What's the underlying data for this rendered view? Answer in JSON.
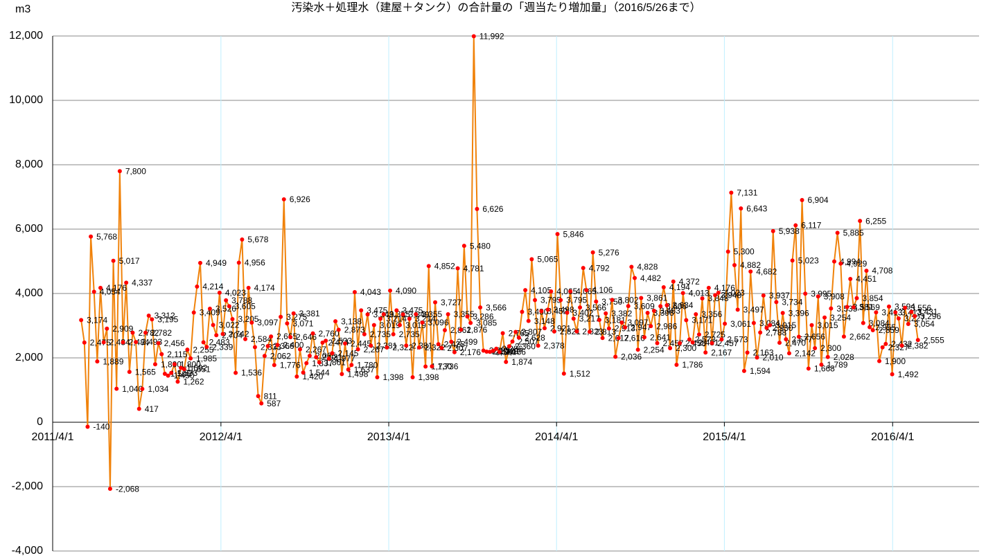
{
  "chart_data": {
    "type": "line",
    "title": "汚染水＋処理水（建屋＋タンク）の合計量の「週当たり増加量」（2016/5/26まで）",
    "y_label": "m3",
    "xlim": [
      "2011/4/1",
      "2016/10/6"
    ],
    "xticks": [
      "2011/4/1",
      "2012/4/1",
      "2013/4/1",
      "2014/4/1",
      "2015/4/1",
      "2016/4/1"
    ],
    "ylim": [
      -4000,
      12000
    ],
    "yticks": [
      {
        "value": -4000,
        "label": "-4,000"
      },
      {
        "value": -2000,
        "label": "-2,000"
      },
      0,
      {
        "value": 2000,
        "label": "2,000"
      },
      {
        "value": 4000,
        "label": "4,000"
      },
      {
        "value": 6000,
        "label": "6,000"
      },
      {
        "value": 8000,
        "label": "8,000"
      },
      {
        "value": 10000,
        "label": "10,000"
      },
      {
        "value": 12000,
        "label": "12,000"
      }
    ],
    "grid": true,
    "line_color": "#f0820a",
    "marker_color": "#ff0000",
    "negative_label_color": "#ff0000",
    "vgrid_color": "#bfefff",
    "x": [
      "2011/6/2",
      "2011/6/9",
      "2011/6/16",
      "2011/6/23",
      "2011/6/30",
      "2011/7/7",
      "2011/7/14",
      "2011/7/21",
      "2011/7/28",
      "2011/8/4",
      "2011/8/11",
      "2011/8/18",
      "2011/8/25",
      "2011/9/1",
      "2011/9/8",
      "2011/9/15",
      "2011/9/22",
      "2011/9/29",
      "2011/10/6",
      "2011/10/13",
      "2011/10/20",
      "2011/10/27",
      "2011/11/3",
      "2011/11/10",
      "2011/11/17",
      "2011/11/24",
      "2011/12/1",
      "2011/12/8",
      "2011/12/15",
      "2011/12/22",
      "2011/12/29",
      "2012/1/5",
      "2012/1/12",
      "2012/1/19",
      "2012/1/26",
      "2012/2/2",
      "2012/2/9",
      "2012/2/16",
      "2012/2/23",
      "2012/3/1",
      "2012/3/8",
      "2012/3/15",
      "2012/3/22",
      "2012/3/29",
      "2012/4/5",
      "2012/4/12",
      "2012/4/19",
      "2012/4/26",
      "2012/5/3",
      "2012/5/10",
      "2012/5/17",
      "2012/5/24",
      "2012/5/31",
      "2012/6/7",
      "2012/6/14",
      "2012/6/21",
      "2012/6/28",
      "2012/7/5",
      "2012/7/12",
      "2012/7/19",
      "2012/7/26",
      "2012/8/2",
      "2012/8/9",
      "2012/8/16",
      "2012/8/23",
      "2012/8/30",
      "2012/9/6",
      "2012/9/13",
      "2012/9/20",
      "2012/9/27",
      "2012/10/4",
      "2012/10/11",
      "2012/10/18",
      "2012/10/25",
      "2012/11/1",
      "2012/11/8",
      "2012/11/15",
      "2012/11/22",
      "2012/11/29",
      "2012/12/6",
      "2012/12/13",
      "2012/12/20",
      "2012/12/27",
      "2013/1/3",
      "2013/1/10",
      "2013/1/17",
      "2013/1/24",
      "2013/1/31",
      "2013/2/7",
      "2013/2/14",
      "2013/2/21",
      "2013/2/28",
      "2013/3/7",
      "2013/3/14",
      "2013/3/21",
      "2013/3/28",
      "2013/4/4",
      "2013/4/11",
      "2013/4/18",
      "2013/4/25",
      "2013/5/2",
      "2013/5/9",
      "2013/5/16",
      "2013/5/23",
      "2013/5/30",
      "2013/6/6",
      "2013/6/13",
      "2013/6/20",
      "2013/6/27",
      "2013/7/4",
      "2013/7/11",
      "2013/7/18",
      "2013/7/25",
      "2013/8/1",
      "2013/8/8",
      "2013/8/15",
      "2013/8/22",
      "2013/8/29",
      "2013/9/5",
      "2013/9/12",
      "2013/9/19",
      "2013/9/26",
      "2013/10/3",
      "2013/10/10",
      "2013/10/17",
      "2013/10/24",
      "2013/10/31",
      "2013/11/7",
      "2013/11/14",
      "2013/11/21",
      "2013/11/28",
      "2013/12/5",
      "2013/12/12",
      "2013/12/19",
      "2013/12/26",
      "2014/1/2",
      "2014/1/9",
      "2014/1/16",
      "2014/1/23",
      "2014/1/30",
      "2014/2/6",
      "2014/2/13",
      "2014/2/20",
      "2014/2/27",
      "2014/3/6",
      "2014/3/13",
      "2014/3/20",
      "2014/3/27",
      "2014/4/3",
      "2014/4/10",
      "2014/4/17",
      "2014/4/24",
      "2014/5/1",
      "2014/5/8",
      "2014/5/15",
      "2014/5/22",
      "2014/5/29",
      "2014/6/5",
      "2014/6/12",
      "2014/6/19",
      "2014/6/26",
      "2014/7/3",
      "2014/7/10",
      "2014/7/17",
      "2014/7/24",
      "2014/7/31",
      "2014/8/7",
      "2014/8/14",
      "2014/8/21",
      "2014/8/28",
      "2014/9/4",
      "2014/9/11",
      "2014/9/18",
      "2014/9/25",
      "2014/10/2",
      "2014/10/9",
      "2014/10/16",
      "2014/10/23",
      "2014/10/30",
      "2014/11/6",
      "2014/11/13",
      "2014/11/20",
      "2014/11/27",
      "2014/12/4",
      "2014/12/11",
      "2014/12/18",
      "2014/12/25",
      "2015/1/1",
      "2015/1/8",
      "2015/1/15",
      "2015/1/22",
      "2015/1/29",
      "2015/2/5",
      "2015/2/12",
      "2015/2/19",
      "2015/2/26",
      "2015/3/5",
      "2015/3/12",
      "2015/3/19",
      "2015/3/26",
      "2015/4/2",
      "2015/4/9",
      "2015/4/16",
      "2015/4/23",
      "2015/4/30",
      "2015/5/7",
      "2015/5/14",
      "2015/5/21",
      "2015/5/28",
      "2015/6/4",
      "2015/6/11",
      "2015/6/18",
      "2015/6/25",
      "2015/7/2",
      "2015/7/9",
      "2015/7/16",
      "2015/7/23",
      "2015/7/30",
      "2015/8/6",
      "2015/8/13",
      "2015/8/20",
      "2015/8/27",
      "2015/9/3",
      "2015/9/10",
      "2015/9/17",
      "2015/9/24",
      "2015/10/1",
      "2015/10/8",
      "2015/10/15",
      "2015/10/22",
      "2015/10/29",
      "2015/11/5",
      "2015/11/12",
      "2015/11/19",
      "2015/11/26",
      "2015/12/3",
      "2015/12/10",
      "2015/12/17",
      "2015/12/24",
      "2015/12/31",
      "2016/1/7",
      "2016/1/14",
      "2016/1/21",
      "2016/1/28",
      "2016/2/4",
      "2016/2/11",
      "2016/2/18",
      "2016/2/25",
      "2016/3/3",
      "2016/3/10",
      "2016/3/17",
      "2016/3/24",
      "2016/3/31",
      "2016/4/7",
      "2016/4/14",
      "2016/4/21",
      "2016/4/28",
      "2016/5/5",
      "2016/5/12",
      "2016/5/19",
      "2016/5/26"
    ],
    "values": [
      3174,
      2475,
      -140,
      5768,
      4054,
      1889,
      4176,
      2484,
      2909,
      -2068,
      5017,
      1040,
      7800,
      2484,
      4337,
      1565,
      2782,
      2493,
      417,
      1034,
      2782,
      3312,
      3195,
      1800,
      2456,
      2115,
      1505,
      1450,
      1533,
      1800,
      1262,
      1692,
      1651,
      2255,
      1985,
      3409,
      4214,
      4949,
      2483,
      2339,
      3526,
      3022,
      2704,
      4023,
      2742,
      3788,
      3605,
      3205,
      1536,
      4956,
      5678,
      2584,
      4174,
      3097,
      2333,
      811,
      587,
      2062,
      2366,
      2665,
      1776,
      2400,
      3275,
      6926,
      3071,
      2646,
      3381,
      1420,
      2267,
      1544,
      1837,
      2065,
      2760,
      2021,
      1861,
      2474,
      2533,
      1977,
      2145,
      3138,
      2873,
      1498,
      2445,
      1637,
      1780,
      4043,
      2267,
      3475,
      2735,
      3349,
      2381,
      3019,
      1398,
      3214,
      3355,
      2322,
      4090,
      2735,
      3475,
      3019,
      3349,
      2381,
      3214,
      1398,
      3355,
      2322,
      3096,
      1730,
      4852,
      1736,
      3727,
      2425,
      2307,
      2861,
      3355,
      2499,
      2176,
      4781,
      2876,
      5480,
      3286,
      3085,
      11992,
      6626,
      3566,
      2225,
      2194,
      2189,
      2221,
      2286,
      2186,
      2765,
      1874,
      2360,
      2507,
      2807,
      2628,
      3430,
      4105,
      3148,
      5065,
      3795,
      2378,
      3452,
      2921,
      3498,
      4065,
      2821,
      5846,
      3795,
      1512,
      3402,
      4065,
      3217,
      2823,
      3566,
      4792,
      4106,
      2813,
      5276,
      3750,
      3181,
      2617,
      3382,
      2913,
      3802,
      2036,
      2616,
      3097,
      2947,
      3609,
      4828,
      4482,
      2254,
      3861,
      2641,
      3398,
      2986,
      3463,
      2457,
      3606,
      4194,
      3634,
      2300,
      4372,
      1786,
      2458,
      4013,
      3171,
      2573,
      2481,
      3356,
      2725,
      3848,
      2167,
      4176,
      2457,
      3948,
      4023,
      2573,
      3061,
      5300,
      7131,
      4882,
      3497,
      6643,
      1594,
      2163,
      4682,
      3084,
      2010,
      2788,
      3937,
      2930,
      3015,
      5938,
      3734,
      2470,
      3396,
      2577,
      2142,
      5023,
      6117,
      2656,
      6904,
      3995,
      1668,
      3015,
      2300,
      3908,
      1789,
      3254,
      2028,
      3535,
      4994,
      5885,
      4929,
      2662,
      3581,
      4451,
      3569,
      3854,
      6255,
      3084,
      4708,
      2955,
      2859,
      3413,
      1900,
      2327,
      2432,
      3594,
      1492,
      3413,
      3227,
      2382,
      3556,
      3054,
      3431,
      3296,
      2555
    ],
    "value_labels": [
      "3,174",
      "2,475",
      "-140",
      "5,768",
      "4,054",
      "1,889",
      "4,176",
      "2,484",
      "2,909",
      "-2,068",
      "5,017",
      "1,040",
      "7,800",
      "2,484",
      "4,337",
      "1,565",
      "2,782",
      "2,493",
      "417",
      "1,034",
      "2,782",
      "3,312",
      "3,195",
      "1,800",
      "2,456",
      "2,115",
      "1,505",
      "1,450",
      "1,533",
      "1,800",
      "1,262",
      "1,692",
      "1,651",
      "2,255",
      "1,985",
      "3,409",
      "4,214",
      "4,949",
      "2,483",
      "2,339",
      "3,526",
      "3,022",
      "2,704",
      "4,023",
      "2,742",
      "3,788",
      "3,605",
      "3,205",
      "1,536",
      "4,956",
      "5,678",
      "2,584",
      "4,174",
      "3,097",
      "2,333",
      "811",
      "587",
      "2,062",
      "2,366",
      "2,665",
      "1,776",
      "2,400",
      "3,275",
      "6,926",
      "3,071",
      "2,646",
      "3,381",
      "1,420",
      "2,267",
      "1,544",
      "1,837",
      "2,065",
      "2,760",
      "2,021",
      "1,861",
      "2,474",
      "2,533",
      "1,977",
      "2,145",
      "3,138",
      "2,873",
      "1,498",
      "2,445",
      "1,637",
      "1,780",
      "4,043",
      "2,267",
      "3,475",
      "2,735",
      "3,349",
      "2,381",
      "3,019",
      "1,398",
      "3,214",
      "3,355",
      "2,322",
      "4,090",
      "2,735",
      "3,475",
      "3,019",
      "3,349",
      "2,381",
      "3,214",
      "1,398",
      "3,355",
      "2,322",
      "3,096",
      "1,730",
      "4,852",
      "1,736",
      "3,727",
      "2,425",
      "2,307",
      "2,861",
      "3,355",
      "2,499",
      "2,176",
      "4,781",
      "2,876",
      "5,480",
      "3,286",
      "3,085",
      "11,992",
      "6,626",
      "3,566",
      "2,225",
      "2,194",
      "2,189",
      "2,221",
      "2,286",
      "2,186",
      "2,765",
      "1,874",
      "2,360",
      "2,507",
      "2,807",
      "2,628",
      "3,430",
      "4,105",
      "3,148",
      "5,065",
      "3,795",
      "2,378",
      "3,452",
      "2,921",
      "3,498",
      "4,065",
      "2,821",
      "5,846",
      "3,795",
      "1,512",
      "3,402",
      "4,065",
      "3,217",
      "2,823",
      "3,566",
      "4,792",
      "4,106",
      "2,813",
      "5,276",
      "3,750",
      "3,181",
      "2,617",
      "3,382",
      "2,913",
      "3,802",
      "2,036",
      "2,616",
      "3,097",
      "2,947",
      "3,609",
      "4,828",
      "4,482",
      "2,254",
      "3,861",
      "2,641",
      "3,398",
      "2,986",
      "3,463",
      "2,457",
      "3,606",
      "4,194",
      "3,634",
      "2,300",
      "4,372",
      "1,786",
      "2,458",
      "4,013",
      "3,171",
      "2,573",
      "2,481",
      "3,356",
      "2,725",
      "3,848",
      "2,167",
      "4,176",
      "2,457",
      "3,948",
      "4,023",
      "2,573",
      "3,061",
      "5,300",
      "7,131",
      "4,882",
      "3,497",
      "6,643",
      "1,594",
      "2,163",
      "4,682",
      "3,084",
      "2,010",
      "2,788",
      "3,937",
      "2,930",
      "3,015",
      "5,938",
      "3,734",
      "2,470",
      "3,396",
      "2,577",
      "2,142",
      "5,023",
      "6,117",
      "2,656",
      "6,904",
      "3,995",
      "1,668",
      "3,015",
      "2,300",
      "3,908",
      "1,789",
      "3,254",
      "2,028",
      "3,535",
      "4,994",
      "5,885",
      "4,929",
      "2,662",
      "3,581",
      "4,451",
      "3,569",
      "3,854",
      "6,255",
      "3,084",
      "4,708",
      "2,955",
      "2,859",
      "3,413",
      "1,900",
      "2,327",
      "2,432",
      "3,594",
      "1,492",
      "3,413",
      "3,227",
      "2,382",
      "3,556",
      "3,054",
      "3,431",
      "3,296",
      "2,555"
    ]
  }
}
